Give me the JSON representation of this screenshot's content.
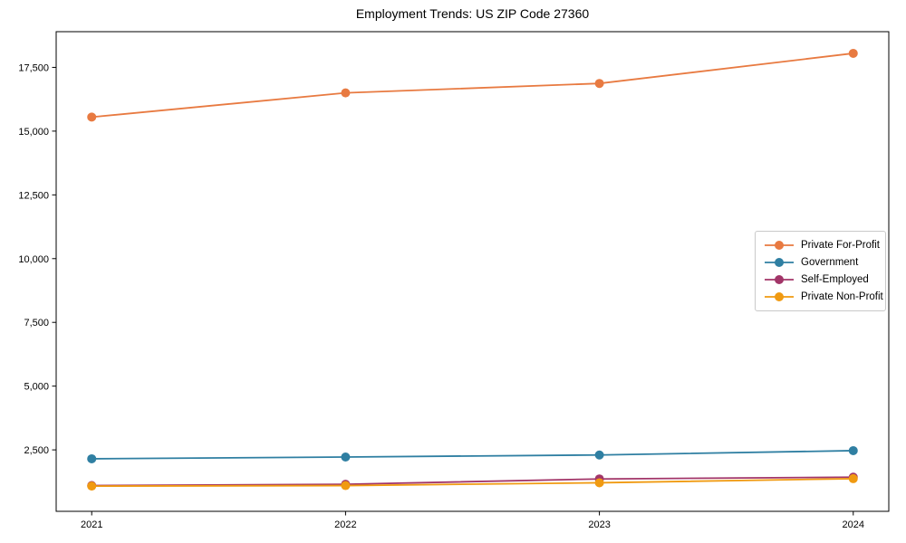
{
  "chart_data": {
    "type": "line",
    "title": "Employment Trends: US ZIP Code 27360",
    "xlabel": "",
    "ylabel": "",
    "x": [
      2021,
      2022,
      2023,
      2024
    ],
    "x_tick_labels": [
      "2021",
      "2022",
      "2023",
      "2024"
    ],
    "series": [
      {
        "name": "Private For-Profit",
        "color": "#e87a41",
        "values": [
          15550,
          16500,
          16870,
          18050
        ]
      },
      {
        "name": "Government",
        "color": "#2f7fa2",
        "values": [
          2150,
          2220,
          2300,
          2470
        ]
      },
      {
        "name": "Self-Employed",
        "color": "#a23568",
        "values": [
          1100,
          1150,
          1360,
          1430
        ]
      },
      {
        "name": "Private Non-Profit",
        "color": "#f09a11",
        "values": [
          1080,
          1100,
          1210,
          1370
        ]
      }
    ],
    "yticks": [
      2500,
      5000,
      7500,
      10000,
      12500,
      15000,
      17500
    ],
    "ytick_labels": [
      "2,500",
      "5,000",
      "7,500",
      "10,000",
      "12,500",
      "15,000",
      "17,500"
    ],
    "xlim": [
      2020.86,
      2024.14
    ],
    "ylim": [
      90,
      18900
    ],
    "grid": false,
    "legend_position": "center-right",
    "marker": "circle",
    "background": "#ffffff",
    "axis_color": "#000000"
  }
}
